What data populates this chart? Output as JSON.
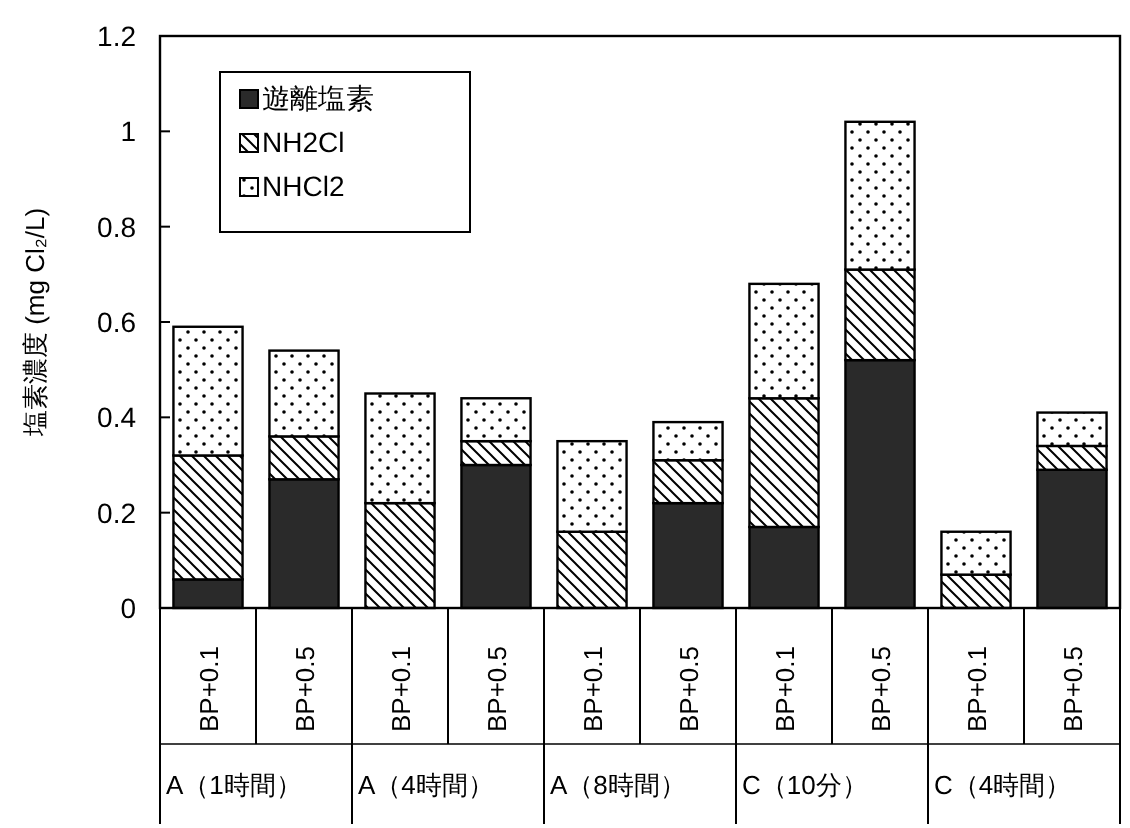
{
  "chart_data": {
    "type": "bar",
    "stacked": true,
    "ylabel": "塩素濃度 (mg Cl₂/L)",
    "categories": [
      "BP+0.1",
      "BP+0.5",
      "BP+0.1",
      "BP+0.5",
      "BP+0.1",
      "BP+0.5",
      "BP+0.1",
      "BP+0.5",
      "BP+0.1",
      "BP+0.5"
    ],
    "series": [
      {
        "name": "遊離塩素",
        "color": "#2a2a2a",
        "values": [
          0.06,
          0.27,
          0,
          0.3,
          0,
          0.22,
          0.17,
          0.52,
          0,
          0.29
        ]
      },
      {
        "name": "NH2Cl",
        "color": "#000000",
        "values": [
          0.26,
          0.09,
          0.22,
          0.05,
          0.16,
          0.09,
          0.27,
          0.19,
          0.07,
          0.05
        ]
      },
      {
        "name": "NHCl2",
        "color": "#000000",
        "values": [
          0.27,
          0.18,
          0.23,
          0.09,
          0.19,
          0.08,
          0.24,
          0.31,
          0.09,
          0.07
        ]
      }
    ],
    "ylim": [
      0,
      1.2
    ],
    "yticks": [
      0,
      0.2,
      0.4,
      0.6,
      0.8,
      1,
      1.2
    ],
    "annotations": [
      "A（1時間）",
      "A（4時間）",
      "A（8時間）",
      "C（10分）",
      "C（4時間）"
    ],
    "legend": "top left",
    "grid": false
  }
}
